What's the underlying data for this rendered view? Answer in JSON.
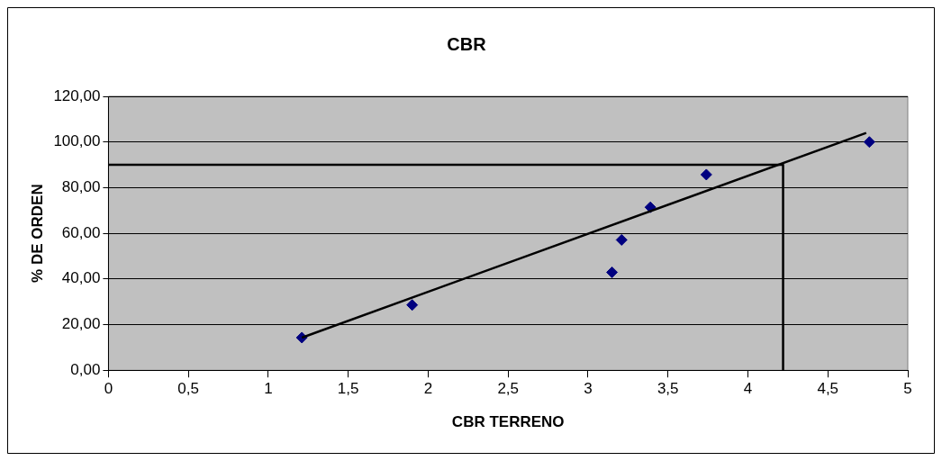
{
  "chart_data": {
    "type": "scatter",
    "title": "CBR",
    "xlabel": "CBR TERRENO",
    "ylabel": "% DE ORDEN",
    "xlim": [
      0,
      5
    ],
    "xticks": [
      0,
      {
        "value": 0.5,
        "label": "0,5"
      },
      1,
      {
        "value": 1.5,
        "label": "1,5"
      },
      2,
      {
        "value": 2.5,
        "label": "2,5"
      },
      3,
      {
        "value": 3.5,
        "label": "3,5"
      },
      4,
      {
        "value": 4.5,
        "label": "4,5"
      },
      5
    ],
    "ylim": [
      0,
      120
    ],
    "yticks": [
      {
        "value": 0,
        "label": "0,00"
      },
      {
        "value": 20,
        "label": "20,00"
      },
      {
        "value": 40,
        "label": "40,00"
      },
      {
        "value": 60,
        "label": "60,00"
      },
      {
        "value": 80,
        "label": "80,00"
      },
      {
        "value": 100,
        "label": "100,00"
      },
      {
        "value": 120,
        "label": "120,00"
      }
    ],
    "grid": "y",
    "legend": false,
    "series": [
      {
        "type": "scatter",
        "color": "#000080",
        "marker": "diamond",
        "x": [
          1.21,
          1.9,
          3.15,
          3.21,
          3.39,
          3.74,
          4.76
        ],
        "values": [
          14.3,
          28.6,
          42.9,
          57.1,
          71.4,
          85.7,
          100
        ]
      },
      {
        "type": "line",
        "color": "#000000",
        "marker": "none",
        "line_style": "solid",
        "x": [
          1.21,
          4.74
        ],
        "values": [
          14.3,
          104
        ]
      },
      {
        "type": "line",
        "color": "#000000",
        "marker": "none",
        "line_style": "solid",
        "x": [
          0,
          4.22,
          4.22
        ],
        "values": [
          90,
          90,
          0
        ]
      }
    ]
  }
}
